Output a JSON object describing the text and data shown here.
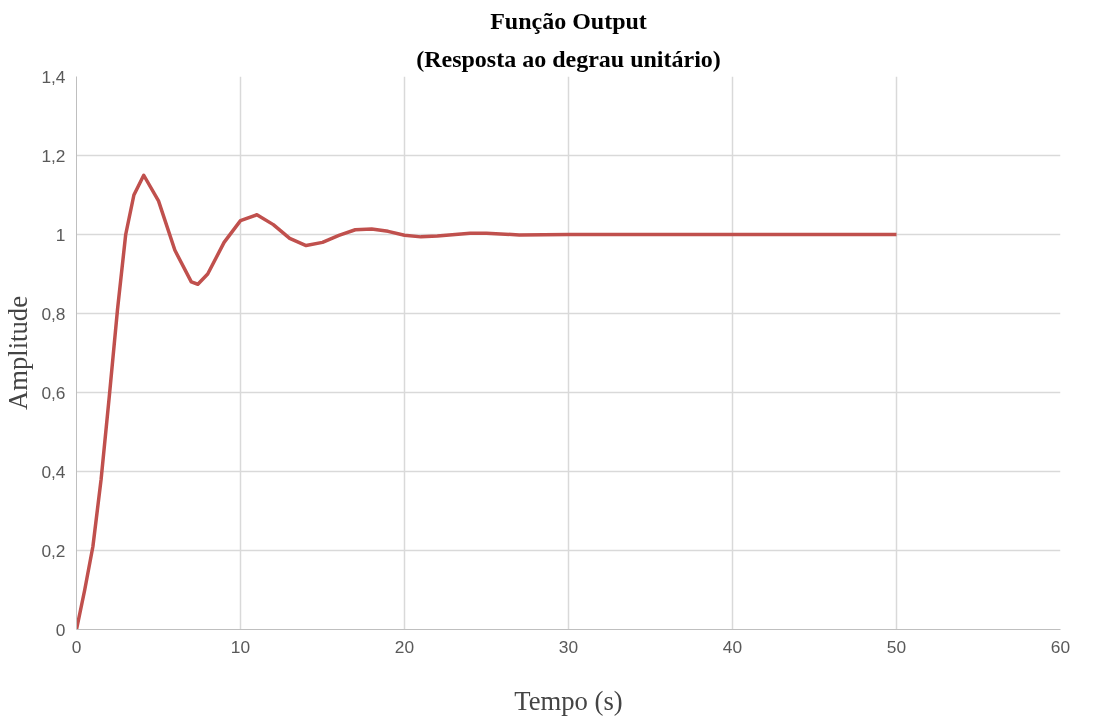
{
  "chart_data": {
    "type": "line",
    "title": "Função Output",
    "subtitle": "(Resposta ao degrau unitário)",
    "xlabel": "Tempo (s)",
    "ylabel": "Amplitude",
    "x": [
      0,
      0.5,
      1,
      1.5,
      2,
      2.5,
      3,
      3.5,
      4.1,
      5,
      6,
      7,
      7.4,
      8,
      9,
      10,
      11,
      12,
      13,
      14,
      15,
      16,
      17,
      18,
      19,
      20,
      21,
      22,
      24,
      25,
      27,
      30,
      35,
      40,
      50
    ],
    "series": [
      {
        "color": "#c0504d",
        "values": [
          0,
          0.1,
          0.21,
          0.38,
          0.59,
          0.81,
          1.0,
          1.1,
          1.15,
          1.085,
          0.96,
          0.88,
          0.874,
          0.9,
          0.98,
          1.035,
          1.05,
          1.025,
          0.99,
          0.972,
          0.98,
          0.998,
          1.012,
          1.014,
          1.008,
          0.998,
          0.994,
          0.996,
          1.003,
          1.003,
          0.999,
          1.0,
          1.0,
          1.0,
          1.0
        ]
      }
    ],
    "xlim": [
      0,
      60
    ],
    "xticks": [
      0,
      10,
      20,
      30,
      40,
      50,
      60
    ],
    "ylim": [
      0,
      1.4
    ],
    "yticks": [
      0,
      {
        "value": 0.2,
        "label": "0,2"
      },
      {
        "value": 0.4,
        "label": "0,4"
      },
      {
        "value": 0.6,
        "label": "0,6"
      },
      {
        "value": 0.8,
        "label": "0,8"
      },
      1,
      {
        "value": 1.2,
        "label": "1,2"
      },
      {
        "value": 1.4,
        "label": "1,4"
      }
    ],
    "grid": true,
    "marker": "none",
    "line_style": "solid"
  }
}
